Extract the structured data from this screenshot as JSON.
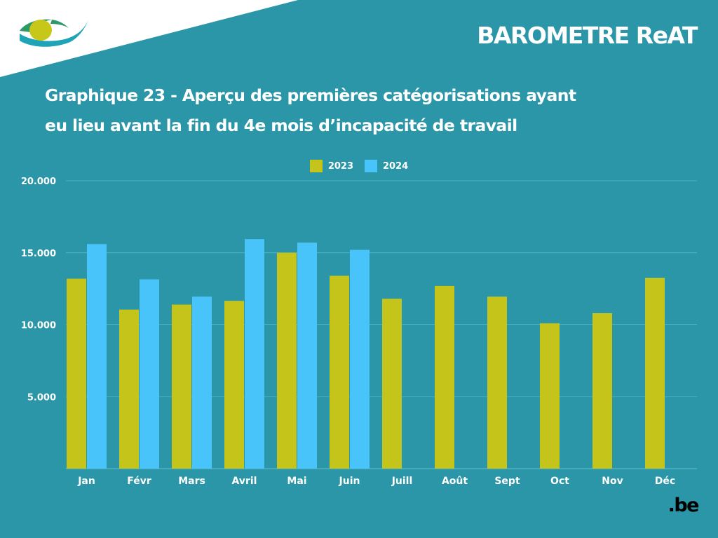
{
  "header": {
    "brand": "BAROMETRE ReAT",
    "logo_icon": "insurance-eye-logo-icon"
  },
  "title_lines": [
    "Graphique 23 - Aperçu des premières catégorisations ayant",
    "eu lieu avant la fin du 4e mois d’incapacité de travail"
  ],
  "footer": {
    "logo_text": ".be"
  },
  "colors": {
    "background": "#2a96a8",
    "series_2023": "#c4c41b",
    "series_2024": "#49c4fb",
    "grid": "#4eb2c0",
    "text": "#ffffff"
  },
  "chart_data": {
    "type": "bar",
    "categories": [
      "Jan",
      "Févr",
      "Mars",
      "Avril",
      "Mai",
      "Juin",
      "Juill",
      "Août",
      "Sept",
      "Oct",
      "Nov",
      "Déc"
    ],
    "series": [
      {
        "name": "2023",
        "color": "#c4c41b",
        "values": [
          13200,
          11050,
          11400,
          11650,
          15000,
          13400,
          11800,
          12700,
          11950,
          10100,
          10800,
          13250
        ]
      },
      {
        "name": "2024",
        "color": "#49c4fb",
        "values": [
          15600,
          13150,
          11950,
          15950,
          15700,
          15200,
          null,
          null,
          null,
          null,
          null,
          null
        ]
      }
    ],
    "y_ticks": [
      "5.000",
      "10.000",
      "15.000",
      "20.000"
    ],
    "y_tick_values": [
      5000,
      10000,
      15000,
      20000
    ],
    "ylim": [
      0,
      20000
    ],
    "legend_position": "top-center",
    "grid": true
  }
}
